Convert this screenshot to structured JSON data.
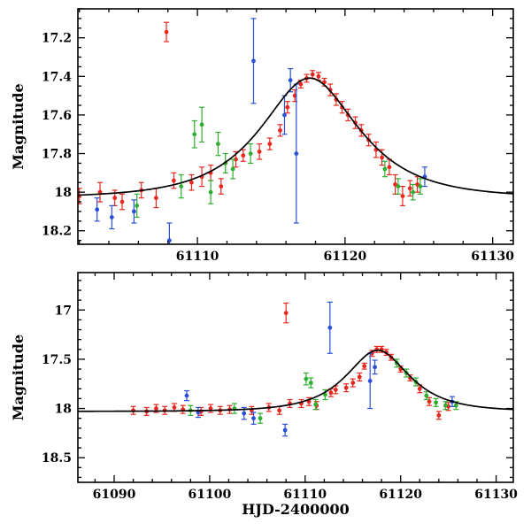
{
  "figure": {
    "xlabel": "HJD-2400000",
    "ylabel": "Magnitude"
  },
  "colors": {
    "red": "#e8271e",
    "green": "#2fae2f",
    "blue": "#2a50d8",
    "model": "#000000",
    "frame": "#000000"
  },
  "chart_data": [
    {
      "type": "scatter",
      "title": "",
      "ylabel": "Magnitude",
      "xlim": [
        61101.9,
        61131.4
      ],
      "ylim_top_to_bottom": [
        17.05,
        18.27
      ],
      "y_inverted": true,
      "xticks": [
        61110,
        61120,
        61130
      ],
      "xtick_labels": [
        "61110",
        "61120",
        "61130"
      ],
      "xtick_minor_step": 2,
      "yticks": [
        17.2,
        17.4,
        17.6,
        17.8,
        18.0,
        18.2
      ],
      "ytick_labels": [
        "17.2",
        "17.4",
        "17.6",
        "17.8",
        "18",
        "18.2"
      ],
      "ytick_minor_step": 0.05,
      "model": {
        "type": "paczynski",
        "m0": 18.03,
        "t0": 61117.6,
        "u0": 0.65,
        "tE": 5.0
      },
      "series": [
        {
          "name": "red",
          "color_key": "red",
          "points": [
            [
              61102.0,
              18.02,
              0.04
            ],
            [
              61103.4,
              18.0,
              0.05
            ],
            [
              61104.4,
              18.03,
              0.04
            ],
            [
              61104.9,
              18.05,
              0.04
            ],
            [
              61106.2,
              17.99,
              0.04
            ],
            [
              61107.2,
              18.03,
              0.05
            ],
            [
              61107.9,
              17.17,
              0.05
            ],
            [
              61108.4,
              17.94,
              0.04
            ],
            [
              61109.6,
              17.95,
              0.04
            ],
            [
              61110.3,
              17.92,
              0.05
            ],
            [
              61110.9,
              17.9,
              0.04
            ],
            [
              61111.6,
              17.97,
              0.04
            ],
            [
              61112.6,
              17.83,
              0.04
            ],
            [
              61113.1,
              17.81,
              0.03
            ],
            [
              61114.2,
              17.79,
              0.04
            ],
            [
              61114.9,
              17.75,
              0.03
            ],
            [
              61115.6,
              17.68,
              0.03
            ],
            [
              61116.1,
              17.56,
              0.03
            ],
            [
              61116.6,
              17.5,
              0.03
            ],
            [
              61117.0,
              17.44,
              0.02
            ],
            [
              61117.4,
              17.41,
              0.02
            ],
            [
              61117.8,
              17.39,
              0.02
            ],
            [
              61118.2,
              17.4,
              0.02
            ],
            [
              61118.6,
              17.43,
              0.02
            ],
            [
              61119.0,
              17.47,
              0.03
            ],
            [
              61119.4,
              17.52,
              0.03
            ],
            [
              61119.8,
              17.56,
              0.03
            ],
            [
              61120.2,
              17.6,
              0.03
            ],
            [
              61120.7,
              17.64,
              0.03
            ],
            [
              61121.1,
              17.68,
              0.03
            ],
            [
              61121.6,
              17.73,
              0.03
            ],
            [
              61122.1,
              17.78,
              0.04
            ],
            [
              61122.5,
              17.82,
              0.04
            ],
            [
              61123.0,
              17.87,
              0.04
            ],
            [
              61123.4,
              17.96,
              0.05
            ],
            [
              61123.9,
              18.02,
              0.05
            ],
            [
              61124.4,
              17.98,
              0.04
            ],
            [
              61124.9,
              17.96,
              0.04
            ]
          ]
        },
        {
          "name": "green",
          "color_key": "green",
          "points": [
            [
              61105.9,
              18.07,
              0.06
            ],
            [
              61108.9,
              17.97,
              0.06
            ],
            [
              61109.8,
              17.7,
              0.07
            ],
            [
              61110.3,
              17.65,
              0.09
            ],
            [
              61110.9,
              18.0,
              0.06
            ],
            [
              61111.4,
              17.75,
              0.06
            ],
            [
              61111.9,
              17.85,
              0.05
            ],
            [
              61112.4,
              17.88,
              0.05
            ],
            [
              61113.6,
              17.8,
              0.05
            ],
            [
              61122.7,
              17.88,
              0.04
            ],
            [
              61123.6,
              17.97,
              0.04
            ],
            [
              61124.6,
              18.0,
              0.04
            ],
            [
              61125.1,
              17.97,
              0.04
            ]
          ]
        },
        {
          "name": "blue",
          "color_key": "blue",
          "points": [
            [
              61103.2,
              18.09,
              0.06
            ],
            [
              61104.2,
              18.13,
              0.06
            ],
            [
              61105.7,
              18.1,
              0.06
            ],
            [
              61108.1,
              18.25,
              0.09
            ],
            [
              61113.8,
              17.32,
              0.22
            ],
            [
              61115.9,
              17.6,
              0.1
            ],
            [
              61116.3,
              17.42,
              0.06
            ],
            [
              61116.7,
              17.8,
              0.36
            ],
            [
              61125.4,
              17.92,
              0.05
            ]
          ]
        }
      ]
    },
    {
      "type": "scatter",
      "title": "",
      "ylabel": "Magnitude",
      "xlabel": "HJD-2400000",
      "xlim": [
        61086.2,
        61131.8
      ],
      "ylim_top_to_bottom": [
        16.62,
        18.75
      ],
      "y_inverted": true,
      "xticks": [
        61090,
        61100,
        61110,
        61120,
        61130
      ],
      "xtick_labels": [
        "61090",
        "61100",
        "61110",
        "61120",
        "61130"
      ],
      "xtick_minor_step": 2,
      "yticks": [
        17.0,
        17.5,
        18.0,
        18.5
      ],
      "ytick_labels": [
        "17",
        "17.5",
        "18",
        "18.5"
      ],
      "ytick_minor_step": 0.1,
      "model": {
        "type": "paczynski",
        "m0": 18.03,
        "t0": 61117.6,
        "u0": 0.65,
        "tE": 5.0
      },
      "series": [
        {
          "name": "red",
          "color_key": "red",
          "points": [
            [
              61092.0,
              18.02,
              0.04
            ],
            [
              61093.4,
              18.03,
              0.04
            ],
            [
              61094.4,
              18.0,
              0.04
            ],
            [
              61095.3,
              18.02,
              0.04
            ],
            [
              61096.3,
              17.99,
              0.04
            ],
            [
              61097.2,
              18.01,
              0.04
            ],
            [
              61099.1,
              18.03,
              0.04
            ],
            [
              61100.1,
              18.0,
              0.04
            ],
            [
              61101.1,
              18.02,
              0.04
            ],
            [
              61102.1,
              18.01,
              0.04
            ],
            [
              61104.4,
              18.02,
              0.04
            ],
            [
              61106.2,
              17.99,
              0.04
            ],
            [
              61107.3,
              18.02,
              0.04
            ],
            [
              61108.0,
              17.03,
              0.1
            ],
            [
              61108.4,
              17.95,
              0.04
            ],
            [
              61109.6,
              17.95,
              0.04
            ],
            [
              61110.4,
              17.93,
              0.04
            ],
            [
              61111.2,
              17.97,
              0.04
            ],
            [
              61112.7,
              17.84,
              0.04
            ],
            [
              61113.2,
              17.81,
              0.04
            ],
            [
              61114.3,
              17.79,
              0.04
            ],
            [
              61115.0,
              17.74,
              0.04
            ],
            [
              61115.7,
              17.68,
              0.04
            ],
            [
              61116.2,
              17.57,
              0.03
            ],
            [
              61117.0,
              17.44,
              0.03
            ],
            [
              61117.5,
              17.4,
              0.03
            ],
            [
              61118.0,
              17.4,
              0.03
            ],
            [
              61118.5,
              17.43,
              0.03
            ],
            [
              61119.0,
              17.48,
              0.03
            ],
            [
              61120.0,
              17.6,
              0.03
            ],
            [
              61121.0,
              17.69,
              0.03
            ],
            [
              61122.0,
              17.8,
              0.04
            ],
            [
              61123.0,
              17.93,
              0.04
            ],
            [
              61124.0,
              18.07,
              0.04
            ],
            [
              61125.0,
              17.98,
              0.04
            ]
          ]
        },
        {
          "name": "green",
          "color_key": "green",
          "points": [
            [
              61098.0,
              18.02,
              0.05
            ],
            [
              61102.6,
              18.0,
              0.05
            ],
            [
              61105.3,
              18.1,
              0.05
            ],
            [
              61110.1,
              17.7,
              0.06
            ],
            [
              61110.6,
              17.74,
              0.05
            ],
            [
              61111.1,
              17.96,
              0.05
            ],
            [
              61112.1,
              17.86,
              0.05
            ],
            [
              61119.6,
              17.54,
              0.04
            ],
            [
              61120.6,
              17.64,
              0.04
            ],
            [
              61121.6,
              17.73,
              0.04
            ],
            [
              61122.7,
              17.87,
              0.04
            ],
            [
              61123.7,
              17.94,
              0.04
            ],
            [
              61124.7,
              17.97,
              0.04
            ],
            [
              61125.8,
              17.97,
              0.04
            ]
          ]
        },
        {
          "name": "blue",
          "color_key": "blue",
          "points": [
            [
              61097.6,
              17.87,
              0.05
            ],
            [
              61098.8,
              18.04,
              0.05
            ],
            [
              61103.6,
              18.05,
              0.06
            ],
            [
              61104.6,
              18.1,
              0.06
            ],
            [
              61107.9,
              18.22,
              0.06
            ],
            [
              61112.6,
              17.18,
              0.26
            ],
            [
              61116.8,
              17.72,
              0.28
            ],
            [
              61117.3,
              17.58,
              0.07
            ],
            [
              61125.4,
              17.93,
              0.05
            ]
          ]
        }
      ]
    }
  ]
}
